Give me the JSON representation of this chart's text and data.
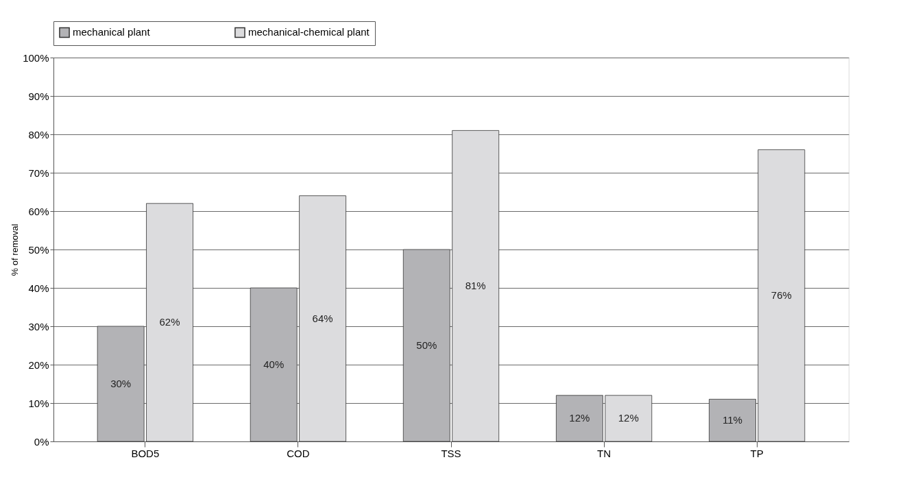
{
  "chart_data": {
    "type": "bar",
    "ylabel": "% of removal",
    "categories": [
      "BOD5",
      "COD",
      "TSS",
      "TN",
      "TP"
    ],
    "series": [
      {
        "name": "mechanical plant",
        "color": "#b3b3b6",
        "values": [
          30,
          40,
          50,
          12,
          11
        ],
        "value_labels": [
          "30%",
          "40%",
          "50%",
          "12%",
          "11%"
        ]
      },
      {
        "name": "mechanical-chemical plant",
        "color": "#dcdcde",
        "values": [
          62,
          64,
          81,
          12,
          76
        ],
        "value_labels": [
          "62%",
          "64%",
          "81%",
          "12%",
          "76%"
        ]
      }
    ],
    "ylim": [
      0,
      100
    ],
    "yticks": [
      {
        "value": 0,
        "label": "0%"
      },
      {
        "value": 10,
        "label": "10%"
      },
      {
        "value": 20,
        "label": "20%"
      },
      {
        "value": 30,
        "label": "30%"
      },
      {
        "value": 40,
        "label": "40%"
      },
      {
        "value": 50,
        "label": "50%"
      },
      {
        "value": 60,
        "label": "60%"
      },
      {
        "value": 70,
        "label": "70%"
      },
      {
        "value": 80,
        "label": "80%"
      },
      {
        "value": 90,
        "label": "90%"
      },
      {
        "value": 100,
        "label": "100%"
      }
    ],
    "grid": "y",
    "legend": "top"
  }
}
